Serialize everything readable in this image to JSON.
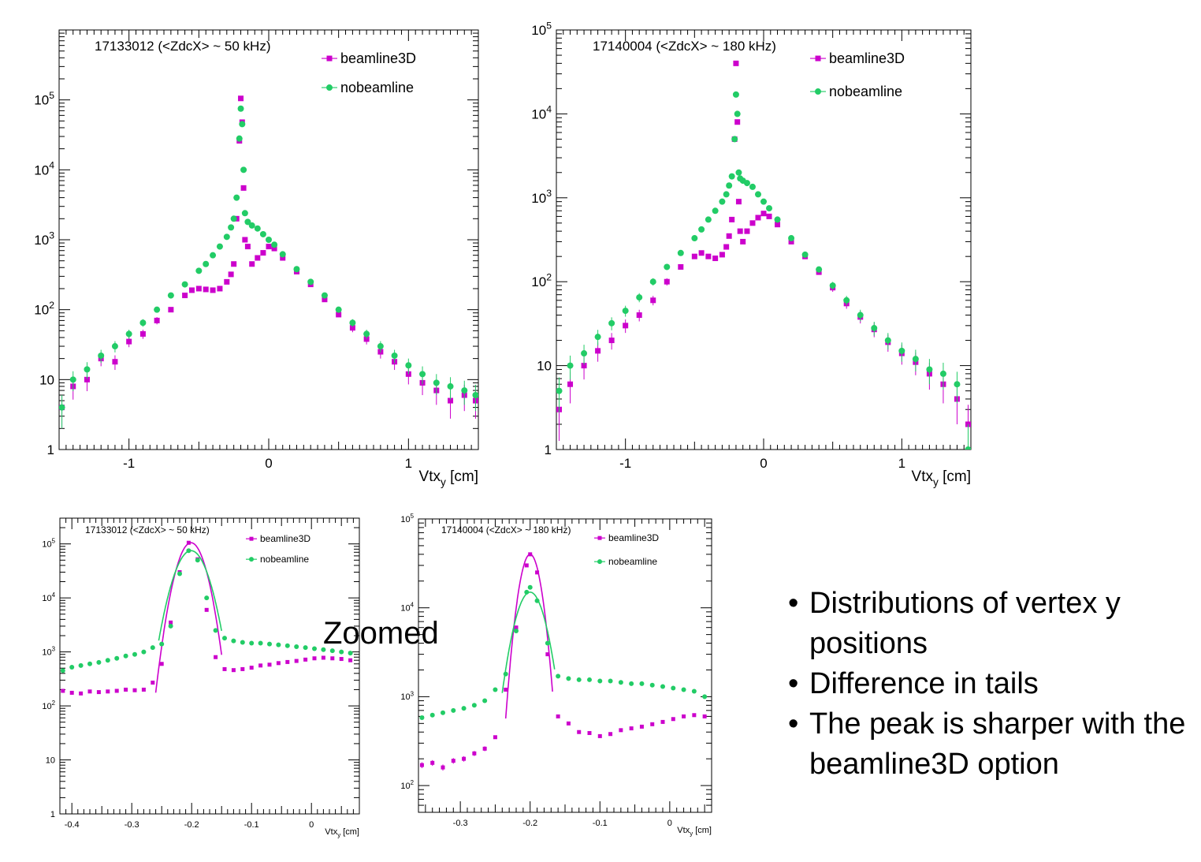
{
  "colors": {
    "beamline3D": "#cc00cc",
    "nobeamline": "#22cc66"
  },
  "zoomed_label": "Zoomed",
  "bullets": [
    "Distributions of vertex y positions",
    "Difference in tails",
    "The peak is sharper with the beamline3D option"
  ],
  "chart_data": [
    {
      "type": "scatter",
      "title": "17133012 (<ZdcX> ~ 50 kHz)",
      "xlabel": "Vtx_y [cm]",
      "ylabel": "",
      "xlim": [
        -1.5,
        1.5
      ],
      "ylim": [
        1,
        1000000
      ],
      "log_y": true,
      "x_ticks": [
        -1,
        0,
        1
      ],
      "y_ticks": [
        1,
        10,
        100,
        1000,
        10000,
        100000
      ],
      "y_tick_labels": [
        "1",
        "10",
        "10^2",
        "10^3",
        "10^4",
        "10^5"
      ],
      "legend_position": "top-right",
      "series": [
        {
          "name": "beamline3D",
          "marker": "square",
          "x": [
            -1.48,
            -1.4,
            -1.3,
            -1.2,
            -1.1,
            -1.0,
            -0.9,
            -0.8,
            -0.7,
            -0.6,
            -0.55,
            -0.5,
            -0.45,
            -0.4,
            -0.35,
            -0.3,
            -0.27,
            -0.25,
            -0.23,
            -0.21,
            -0.2,
            -0.19,
            -0.18,
            -0.17,
            -0.15,
            -0.12,
            -0.08,
            -0.04,
            0.0,
            0.04,
            0.1,
            0.2,
            0.3,
            0.4,
            0.5,
            0.6,
            0.7,
            0.8,
            0.9,
            1.0,
            1.1,
            1.2,
            1.3,
            1.4,
            1.48
          ],
          "y": [
            4,
            8,
            10,
            20,
            18,
            35,
            45,
            70,
            100,
            160,
            190,
            200,
            195,
            190,
            200,
            250,
            320,
            450,
            2000,
            26000,
            105000,
            48000,
            5500,
            1000,
            800,
            450,
            550,
            650,
            800,
            750,
            550,
            350,
            230,
            140,
            85,
            55,
            38,
            25,
            18,
            12,
            9,
            7,
            5,
            6,
            5
          ]
        },
        {
          "name": "nobeamline",
          "marker": "circle",
          "x": [
            -1.48,
            -1.4,
            -1.3,
            -1.2,
            -1.1,
            -1.0,
            -0.9,
            -0.8,
            -0.7,
            -0.6,
            -0.5,
            -0.45,
            -0.4,
            -0.35,
            -0.3,
            -0.27,
            -0.25,
            -0.23,
            -0.21,
            -0.2,
            -0.19,
            -0.18,
            -0.17,
            -0.15,
            -0.12,
            -0.08,
            -0.04,
            0.0,
            0.04,
            0.1,
            0.2,
            0.3,
            0.4,
            0.5,
            0.6,
            0.7,
            0.8,
            0.9,
            1.0,
            1.1,
            1.2,
            1.3,
            1.4,
            1.48
          ],
          "y": [
            4,
            10,
            14,
            22,
            30,
            45,
            65,
            100,
            160,
            230,
            360,
            450,
            600,
            800,
            1100,
            1500,
            2000,
            4000,
            28000,
            75000,
            45000,
            10000,
            2400,
            1800,
            1600,
            1450,
            1200,
            1000,
            850,
            620,
            380,
            250,
            160,
            100,
            65,
            45,
            30,
            22,
            16,
            12,
            9,
            8,
            7,
            6
          ]
        }
      ]
    },
    {
      "type": "scatter",
      "title": "17140004 (<ZdcX> ~ 180 kHz)",
      "xlabel": "Vtx_y [cm]",
      "ylabel": "",
      "xlim": [
        -1.5,
        1.5
      ],
      "ylim": [
        1,
        100000
      ],
      "log_y": true,
      "x_ticks": [
        -1,
        0,
        1
      ],
      "y_ticks": [
        1,
        10,
        100,
        1000,
        10000,
        100000
      ],
      "y_tick_labels": [
        "1",
        "10",
        "10^2",
        "10^3",
        "10^4",
        "10^5"
      ],
      "legend_position": "top-right",
      "series": [
        {
          "name": "beamline3D",
          "marker": "square",
          "x": [
            -1.48,
            -1.4,
            -1.3,
            -1.2,
            -1.1,
            -1.0,
            -0.9,
            -0.8,
            -0.7,
            -0.6,
            -0.5,
            -0.45,
            -0.4,
            -0.35,
            -0.3,
            -0.27,
            -0.25,
            -0.23,
            -0.21,
            -0.2,
            -0.19,
            -0.18,
            -0.17,
            -0.15,
            -0.12,
            -0.08,
            -0.04,
            0.0,
            0.04,
            0.1,
            0.2,
            0.3,
            0.4,
            0.5,
            0.6,
            0.7,
            0.8,
            0.9,
            1.0,
            1.1,
            1.2,
            1.3,
            1.4,
            1.48
          ],
          "y": [
            3,
            6,
            10,
            15,
            20,
            30,
            40,
            60,
            100,
            150,
            200,
            220,
            200,
            190,
            210,
            260,
            350,
            550,
            5000,
            40000,
            8000,
            900,
            400,
            300,
            400,
            500,
            580,
            650,
            600,
            480,
            300,
            200,
            130,
            85,
            55,
            38,
            27,
            19,
            14,
            11,
            8,
            6,
            4,
            2
          ]
        },
        {
          "name": "nobeamline",
          "marker": "circle",
          "x": [
            -1.48,
            -1.4,
            -1.3,
            -1.2,
            -1.1,
            -1.0,
            -0.9,
            -0.8,
            -0.7,
            -0.6,
            -0.5,
            -0.45,
            -0.4,
            -0.35,
            -0.3,
            -0.27,
            -0.25,
            -0.23,
            -0.21,
            -0.2,
            -0.19,
            -0.18,
            -0.17,
            -0.15,
            -0.12,
            -0.08,
            -0.04,
            0.0,
            0.04,
            0.1,
            0.2,
            0.3,
            0.4,
            0.5,
            0.6,
            0.7,
            0.8,
            0.9,
            1.0,
            1.1,
            1.2,
            1.3,
            1.4,
            1.48
          ],
          "y": [
            5,
            10,
            14,
            22,
            32,
            45,
            65,
            100,
            150,
            220,
            330,
            420,
            550,
            700,
            900,
            1100,
            1400,
            1800,
            5000,
            17000,
            10000,
            2000,
            1700,
            1600,
            1500,
            1350,
            1100,
            900,
            750,
            550,
            330,
            210,
            140,
            90,
            60,
            40,
            28,
            20,
            15,
            12,
            9,
            8,
            6,
            1
          ]
        }
      ]
    },
    {
      "type": "scatter",
      "title": "17133012 (<ZdcX> ~ 50 kHz)",
      "xlabel": "Vtx_y [cm]",
      "ylabel": "",
      "xlim": [
        -0.42,
        0.08
      ],
      "ylim": [
        1,
        300000
      ],
      "log_y": true,
      "x_ticks": [
        -0.4,
        -0.3,
        -0.2,
        -0.1,
        0
      ],
      "y_ticks": [
        1,
        10,
        100,
        1000,
        10000,
        100000
      ],
      "y_tick_labels": [
        "1",
        "10",
        "10^2",
        "10^3",
        "10^4",
        "10^5"
      ],
      "legend_position": "top-right",
      "series": [
        {
          "name": "beamline3D",
          "marker": "square",
          "x": [
            -0.415,
            -0.4,
            -0.385,
            -0.37,
            -0.355,
            -0.34,
            -0.325,
            -0.31,
            -0.295,
            -0.28,
            -0.265,
            -0.25,
            -0.235,
            -0.22,
            -0.205,
            -0.19,
            -0.175,
            -0.16,
            -0.145,
            -0.13,
            -0.115,
            -0.1,
            -0.085,
            -0.07,
            -0.055,
            -0.04,
            -0.025,
            -0.01,
            0.005,
            0.02,
            0.035,
            0.05,
            0.065
          ],
          "y": [
            190,
            175,
            170,
            185,
            180,
            185,
            190,
            200,
            195,
            200,
            270,
            600,
            3500,
            30000,
            105000,
            52000,
            6000,
            800,
            480,
            460,
            480,
            510,
            560,
            580,
            620,
            650,
            680,
            720,
            760,
            780,
            760,
            740,
            700
          ]
        },
        {
          "name": "nobeamline",
          "marker": "circle",
          "x": [
            -0.415,
            -0.4,
            -0.385,
            -0.37,
            -0.355,
            -0.34,
            -0.325,
            -0.31,
            -0.295,
            -0.28,
            -0.265,
            -0.25,
            -0.235,
            -0.22,
            -0.205,
            -0.19,
            -0.175,
            -0.16,
            -0.145,
            -0.13,
            -0.115,
            -0.1,
            -0.085,
            -0.07,
            -0.055,
            -0.04,
            -0.025,
            -0.01,
            0.005,
            0.02,
            0.035,
            0.05,
            0.065
          ],
          "y": [
            450,
            520,
            560,
            600,
            640,
            700,
            760,
            840,
            900,
            1000,
            1200,
            1400,
            3000,
            28000,
            75000,
            50000,
            10000,
            2500,
            1800,
            1600,
            1500,
            1450,
            1450,
            1400,
            1350,
            1300,
            1250,
            1200,
            1150,
            1100,
            1050,
            1000,
            950
          ]
        }
      ],
      "fits": [
        {
          "name": "beamline3D",
          "mean": -0.201,
          "sigma": 0.0165,
          "amplitude": 105000,
          "x_range": [
            -0.26,
            -0.15
          ]
        },
        {
          "name": "nobeamline",
          "mean": -0.201,
          "sigma": 0.0195,
          "amplitude": 75000,
          "x_range": [
            -0.255,
            -0.15
          ]
        }
      ]
    },
    {
      "type": "scatter",
      "title": "17140004 (<ZdcX> ~ 180 kHz)",
      "xlabel": "Vtx_y [cm]",
      "ylabel": "",
      "xlim": [
        -0.36,
        0.06
      ],
      "ylim": [
        50,
        100000
      ],
      "log_y": true,
      "x_ticks": [
        -0.3,
        -0.2,
        -0.1,
        0
      ],
      "y_ticks": [
        100,
        1000,
        10000,
        100000
      ],
      "y_tick_labels": [
        "10^2",
        "10^3",
        "10^4",
        "10^5"
      ],
      "legend_position": "top-right",
      "series": [
        {
          "name": "beamline3D",
          "marker": "square",
          "x": [
            -0.355,
            -0.34,
            -0.325,
            -0.31,
            -0.295,
            -0.28,
            -0.265,
            -0.25,
            -0.235,
            -0.22,
            -0.205,
            -0.2,
            -0.19,
            -0.175,
            -0.16,
            -0.145,
            -0.13,
            -0.115,
            -0.1,
            -0.085,
            -0.07,
            -0.055,
            -0.04,
            -0.025,
            -0.01,
            0.005,
            0.02,
            0.035,
            0.05
          ],
          "y": [
            170,
            180,
            160,
            190,
            200,
            230,
            260,
            350,
            1200,
            6000,
            30000,
            40000,
            25000,
            3000,
            600,
            500,
            400,
            390,
            360,
            380,
            420,
            440,
            460,
            490,
            520,
            560,
            600,
            620,
            600
          ]
        },
        {
          "name": "nobeamline",
          "marker": "circle",
          "x": [
            -0.355,
            -0.34,
            -0.325,
            -0.31,
            -0.295,
            -0.28,
            -0.265,
            -0.25,
            -0.235,
            -0.22,
            -0.205,
            -0.2,
            -0.19,
            -0.175,
            -0.16,
            -0.145,
            -0.13,
            -0.115,
            -0.1,
            -0.085,
            -0.07,
            -0.055,
            -0.04,
            -0.025,
            -0.01,
            0.005,
            0.02,
            0.035,
            0.05
          ],
          "y": [
            580,
            620,
            660,
            700,
            740,
            800,
            900,
            1200,
            1800,
            5500,
            15000,
            17000,
            12000,
            4000,
            1700,
            1600,
            1550,
            1550,
            1500,
            1500,
            1450,
            1400,
            1400,
            1350,
            1300,
            1250,
            1200,
            1150,
            1000
          ]
        }
      ],
      "fits": [
        {
          "name": "beamline3D",
          "mean": -0.2,
          "sigma": 0.012,
          "amplitude": 40000,
          "x_range": [
            -0.235,
            -0.168
          ]
        },
        {
          "name": "nobeamline",
          "mean": -0.2,
          "sigma": 0.0175,
          "amplitude": 15000,
          "x_range": [
            -0.24,
            -0.165
          ]
        }
      ]
    }
  ]
}
